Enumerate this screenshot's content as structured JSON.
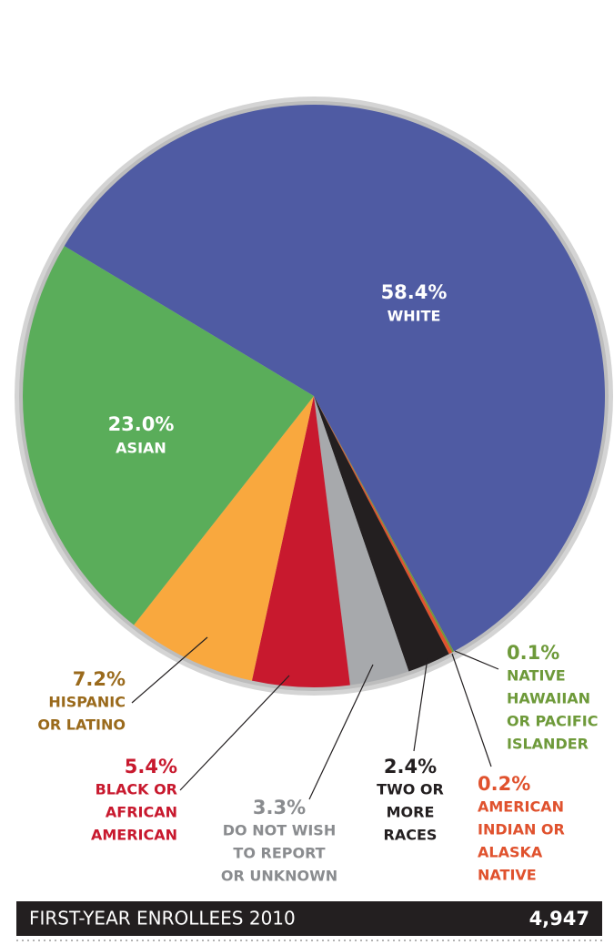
{
  "chart_data": {
    "type": "pie",
    "categories": [
      [
        "WHITE"
      ],
      [
        "NATIVE",
        "HAWAIIAN",
        "OR PACIFIC",
        "ISLANDER"
      ],
      [
        "AMERICAN",
        "INDIAN OR",
        "ALASKA",
        "NATIVE"
      ],
      [
        "TWO OR",
        "MORE",
        "RACES"
      ],
      [
        "DO NOT WISH",
        "TO REPORT",
        "OR UNKNOWN"
      ],
      [
        "BLACK OR",
        "AFRICAN",
        "AMERICAN"
      ],
      [
        "HISPANIC",
        "OR LATINO"
      ],
      [
        "ASIAN"
      ]
    ],
    "values": [
      58.4,
      0.1,
      0.2,
      2.4,
      3.3,
      5.4,
      7.2,
      23.0
    ],
    "value_labels": [
      "58.4%",
      "0.1%",
      "0.2%",
      "2.4%",
      "3.3%",
      "5.4%",
      "7.2%",
      "23.0%"
    ],
    "colors": [
      "#4f5ba3",
      "#6e9a3a",
      "#e0522e",
      "#231f20",
      "#a7a9ac",
      "#c8192e",
      "#f9a83e",
      "#5aad5a"
    ],
    "label_colors": [
      "#ffffff",
      "#6e9a3a",
      "#e0522e",
      "#231f20",
      "#8a8c8f",
      "#c8192e",
      "#9a6a1c",
      "#ffffff"
    ],
    "footer_label": "FIRST-YEAR ENROLLEES 2010",
    "footer_value": "4,947"
  }
}
